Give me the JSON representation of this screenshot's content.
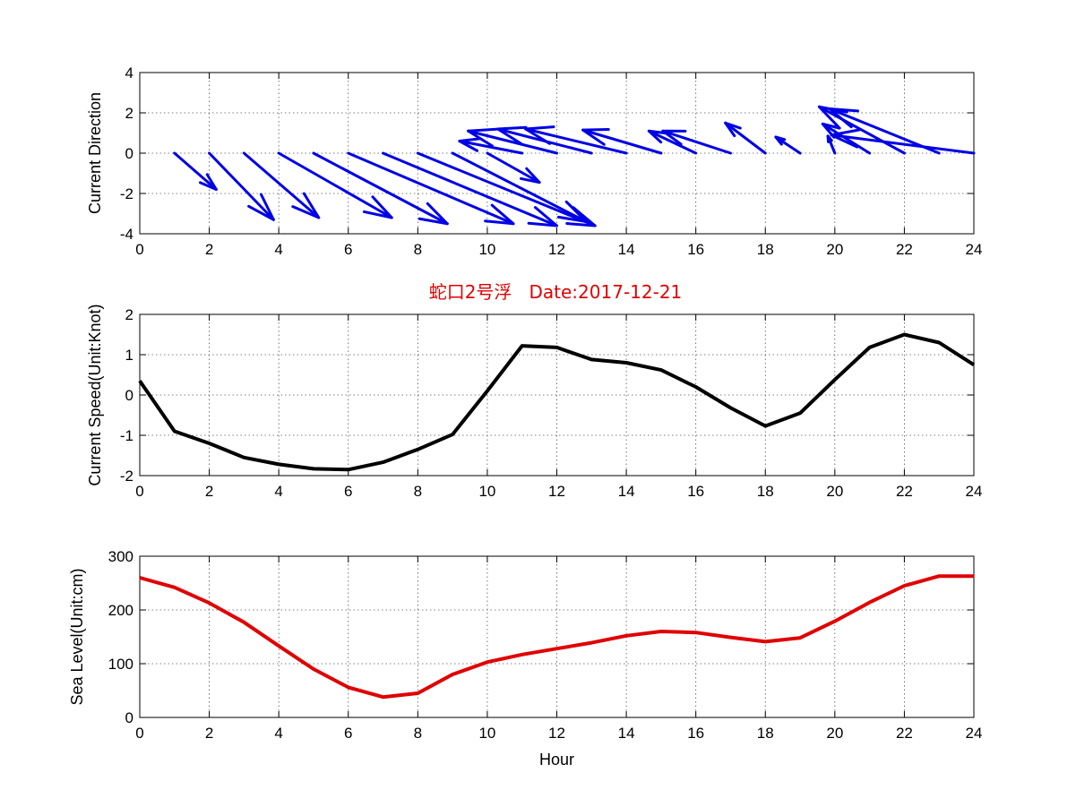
{
  "title": "蛇口2号浮   Date:2017-12-21",
  "colors": {
    "title": "#e00000",
    "arrows": "#0000e6",
    "speed": "#000000",
    "level": "#e00000"
  },
  "chart_data": [
    {
      "type": "quiver",
      "ylabel": "Current Direction",
      "xlabel": "",
      "xlim": [
        0,
        24
      ],
      "ylim": [
        -4,
        4
      ],
      "xticks": [
        0,
        2,
        4,
        6,
        8,
        10,
        12,
        14,
        16,
        18,
        20,
        22,
        24
      ],
      "yticks": [
        -4,
        -2,
        0,
        2,
        4
      ],
      "grid": true,
      "x": [
        1,
        2,
        3,
        4,
        5,
        6,
        7,
        8,
        9,
        10,
        11,
        12,
        13,
        14,
        15,
        16,
        17,
        18,
        19,
        20,
        21,
        22,
        23,
        24
      ],
      "u": [
        1.2,
        1.85,
        2.15,
        3.25,
        3.85,
        4.75,
        5.0,
        5.1,
        3.85,
        1.5,
        -1.8,
        -2.55,
        -2.7,
        -2.9,
        -2.25,
        -1.35,
        -1.95,
        -1.15,
        -0.7,
        -0.2,
        -1.35,
        -2.45,
        -3.15,
        -4.1
      ],
      "v": [
        -1.8,
        -3.3,
        -3.2,
        -3.2,
        -3.5,
        -3.5,
        -3.6,
        -3.6,
        -3.4,
        -1.45,
        0.6,
        1.1,
        1.2,
        1.2,
        1.15,
        1.1,
        1.1,
        1.5,
        0.8,
        0.85,
        1.45,
        2.3,
        2.2,
        0.9
      ]
    },
    {
      "type": "line",
      "ylabel": "Current Speed(Unit:Knot)",
      "xlabel": "",
      "xlim": [
        0,
        24
      ],
      "ylim": [
        -2,
        2
      ],
      "xticks": [
        0,
        2,
        4,
        6,
        8,
        10,
        12,
        14,
        16,
        18,
        20,
        22,
        24
      ],
      "yticks": [
        -2,
        -1,
        0,
        1,
        2
      ],
      "grid": true,
      "x": [
        0,
        1,
        2,
        3,
        4,
        5,
        6,
        7,
        8,
        9,
        10,
        11,
        12,
        13,
        14,
        15,
        16,
        17,
        18,
        19,
        20,
        21,
        22,
        23,
        24
      ],
      "y": [
        0.35,
        -0.9,
        -1.2,
        -1.55,
        -1.72,
        -1.83,
        -1.85,
        -1.67,
        -1.35,
        -0.98,
        0.1,
        1.22,
        1.18,
        0.88,
        0.8,
        0.62,
        0.2,
        -0.32,
        -0.77,
        -0.45,
        0.38,
        1.18,
        1.5,
        1.3,
        0.75
      ]
    },
    {
      "type": "line",
      "ylabel": "Sea Level(Unit:cm)",
      "xlabel": "Hour",
      "xlim": [
        0,
        24
      ],
      "ylim": [
        0,
        300
      ],
      "xticks": [
        0,
        2,
        4,
        6,
        8,
        10,
        12,
        14,
        16,
        18,
        20,
        22,
        24
      ],
      "yticks": [
        0,
        100,
        200,
        300
      ],
      "grid": true,
      "x": [
        0,
        1,
        2,
        3,
        4,
        5,
        6,
        7,
        8,
        9,
        10,
        11,
        12,
        13,
        14,
        15,
        16,
        17,
        18,
        19,
        20,
        21,
        22,
        23,
        24
      ],
      "y": [
        260,
        242,
        213,
        177,
        133,
        90,
        56,
        38,
        45,
        80,
        103,
        117,
        128,
        139,
        152,
        160,
        158,
        149,
        141,
        148,
        179,
        214,
        245,
        263,
        263
      ]
    }
  ]
}
